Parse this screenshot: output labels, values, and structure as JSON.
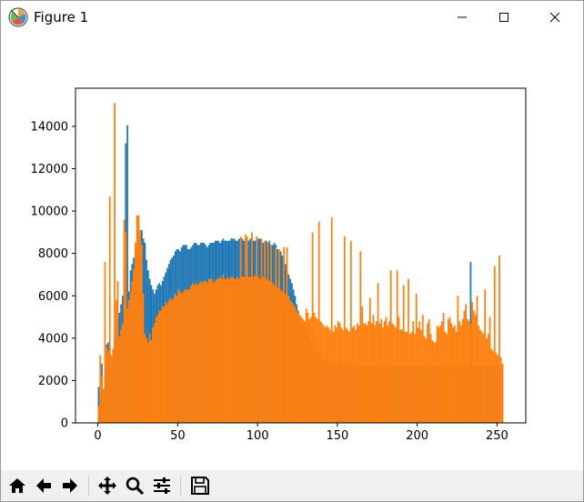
{
  "window": {
    "title": "Figure 1",
    "controls": [
      "minimize-icon",
      "maximize-icon",
      "close-icon"
    ]
  },
  "toolbar": {
    "buttons": [
      {
        "name": "home-button",
        "icon": "home-icon"
      },
      {
        "name": "back-button",
        "icon": "arrow-left-icon"
      },
      {
        "name": "forward-button",
        "icon": "arrow-right-icon"
      },
      {
        "name": "pan-button",
        "icon": "move-icon"
      },
      {
        "name": "zoom-button",
        "icon": "magnifier-icon"
      },
      {
        "name": "configure-subplots-button",
        "icon": "sliders-icon"
      },
      {
        "name": "save-button",
        "icon": "floppy-disk-icon"
      }
    ]
  },
  "colors": {
    "series_blue": "#1f77b4",
    "series_orange": "#ff7f0e",
    "toolbar_bg": "#f0f0f0"
  },
  "chart_data": {
    "type": "bar",
    "title": "",
    "xlabel": "",
    "ylabel": "",
    "xlim": [
      -14,
      268
    ],
    "ylim": [
      0,
      15800
    ],
    "xticks": [
      0,
      50,
      100,
      150,
      200,
      250
    ],
    "yticks": [
      0,
      2000,
      4000,
      6000,
      8000,
      10000,
      12000,
      14000
    ],
    "grid": false,
    "legend": "none",
    "series": [
      {
        "color": "#1f77b4",
        "values": [
          1700,
          1400,
          2800,
          800,
          2400,
          3700,
          3800,
          3600,
          2800,
          3200,
          4000,
          4500,
          4900,
          5200,
          5600,
          6000,
          7300,
          13200,
          14050,
          6200,
          7200,
          7500,
          7800,
          8100,
          8300,
          8600,
          8800,
          9100,
          8700,
          8500,
          7700,
          7200,
          6800,
          6500,
          6300,
          6100,
          6300,
          6500,
          6600,
          6500,
          6700,
          6900,
          7100,
          7300,
          7500,
          7700,
          7800,
          7900,
          8100,
          8200,
          8200,
          8100,
          8300,
          8400,
          8400,
          8400,
          8200,
          8200,
          8300,
          8400,
          8500,
          8500,
          8400,
          8400,
          8500,
          8500,
          8500,
          8400,
          8300,
          8400,
          8500,
          8500,
          8500,
          8600,
          8600,
          8600,
          8500,
          8600,
          8700,
          8600,
          8600,
          8600,
          8600,
          8700,
          8700,
          8700,
          8600,
          8600,
          8700,
          8700,
          8700,
          8600,
          8600,
          8600,
          8600,
          8700,
          8700,
          8600,
          8600,
          8600,
          8700,
          8700,
          8600,
          8500,
          8500,
          8600,
          8500,
          8600,
          8400,
          8400,
          8500,
          8400,
          8200,
          8200,
          8100,
          7900,
          7800,
          7500,
          7200,
          7000,
          6800,
          6600,
          6300,
          6000,
          5600,
          5300,
          5000,
          4800,
          4600,
          4500,
          4400,
          4300,
          4100,
          3900,
          3700,
          3500,
          3400,
          3300,
          3200,
          3100,
          3000,
          3000,
          3000,
          3000,
          2900,
          2900,
          2900,
          2900,
          2800,
          2800,
          2800,
          2800,
          2800,
          2800,
          2800,
          2800,
          2800,
          2800,
          2800,
          2800,
          2800,
          2800,
          2700,
          2700,
          2700,
          2700,
          2700,
          2700,
          2700,
          2700,
          2700,
          2700,
          2700,
          2700,
          2700,
          2700,
          2700,
          2700,
          2700,
          2700,
          2700,
          2700,
          2700,
          2700,
          2700,
          2700,
          2700,
          2700,
          2700,
          2700,
          2700,
          2700,
          2700,
          2700,
          2700,
          2700,
          2700,
          2700,
          2700,
          2700,
          2700,
          2700,
          2700,
          2700,
          2700,
          2700,
          2700,
          2700,
          2700,
          2700,
          2700,
          2700,
          2700,
          2700,
          2700,
          2700,
          2700,
          2700,
          2700,
          2700,
          2700,
          2700,
          2700,
          2700,
          2700,
          2700,
          2700,
          2700,
          2700,
          2700,
          2700,
          2700,
          2700,
          7600,
          5000,
          2700,
          2700,
          2700,
          2700,
          2700,
          2700,
          2700,
          2700,
          2700,
          2700,
          2700,
          2700,
          2700,
          2700,
          2700,
          2700,
          2700
        ]
      },
      {
        "color": "#ff7f0e",
        "values": [
          800,
          3200,
          2200,
          1600,
          7600,
          3600,
          3400,
          10700,
          3200,
          3500,
          15100,
          5800,
          6700,
          4100,
          4400,
          4700,
          9600,
          9000,
          5400,
          5800,
          6200,
          6700,
          7300,
          8500,
          9800,
          9800,
          9100,
          8400,
          6100,
          4200,
          4000,
          3800,
          4200,
          3900,
          4500,
          4700,
          5000,
          5100,
          5300,
          5300,
          5500,
          5500,
          5700,
          5600,
          5800,
          5900,
          5800,
          5900,
          6100,
          6000,
          6300,
          6200,
          6100,
          6200,
          6300,
          6300,
          6300,
          6300,
          6500,
          6600,
          6500,
          6600,
          6500,
          6600,
          6700,
          6600,
          6700,
          6700,
          6600,
          6800,
          6800,
          6800,
          6600,
          6700,
          6800,
          6800,
          6900,
          6800,
          7000,
          6800,
          6800,
          6900,
          6800,
          6900,
          6900,
          6800,
          6800,
          6900,
          6800,
          8800,
          6900,
          6900,
          8900,
          8800,
          6900,
          6900,
          9000,
          6900,
          7000,
          8800,
          6900,
          6800,
          8700,
          6900,
          8600,
          6800,
          8500,
          6700,
          8400,
          6600,
          6500,
          8300,
          6400,
          8200,
          6300,
          6200,
          8300,
          6100,
          8300,
          6000,
          5800,
          5700,
          5600,
          5500,
          5300,
          5200,
          5100,
          5000,
          4900,
          4800,
          5400,
          5200,
          4900,
          5000,
          9000,
          5200,
          5000,
          4900,
          9500,
          4800,
          4700,
          4600,
          4500,
          4600,
          4500,
          4400,
          9700,
          4300,
          4600,
          4500,
          4800,
          4700,
          4500,
          4400,
          8800,
          4500,
          4400,
          4300,
          8600,
          4500,
          4600,
          4400,
          4700,
          4600,
          8100,
          5500,
          4700,
          4700,
          4600,
          4800,
          5900,
          4700,
          5100,
          4600,
          4800,
          6600,
          4700,
          4900,
          4500,
          4800,
          5000,
          4600,
          4800,
          7200,
          4700,
          4600,
          4500,
          7200,
          5000,
          4400,
          4400,
          6500,
          4300,
          4300,
          6800,
          4200,
          4300,
          4800,
          4200,
          6100,
          4500,
          4800,
          4400,
          5100,
          4100,
          4000,
          4700,
          4900,
          4200,
          3900,
          3800,
          3800,
          4600,
          4500,
          4600,
          4800,
          5200,
          4300,
          4200,
          4900,
          5000,
          4700,
          4500,
          4600,
          4300,
          6000,
          4800,
          4600,
          4900,
          5300,
          5600,
          4900,
          4800,
          4700,
          5700,
          5300,
          5100,
          6000,
          4600,
          4400,
          4300,
          4200,
          6300,
          4000,
          4200,
          5000,
          3500,
          3400,
          7400,
          3300,
          3200,
          7900,
          3100,
          2800
        ]
      }
    ]
  }
}
